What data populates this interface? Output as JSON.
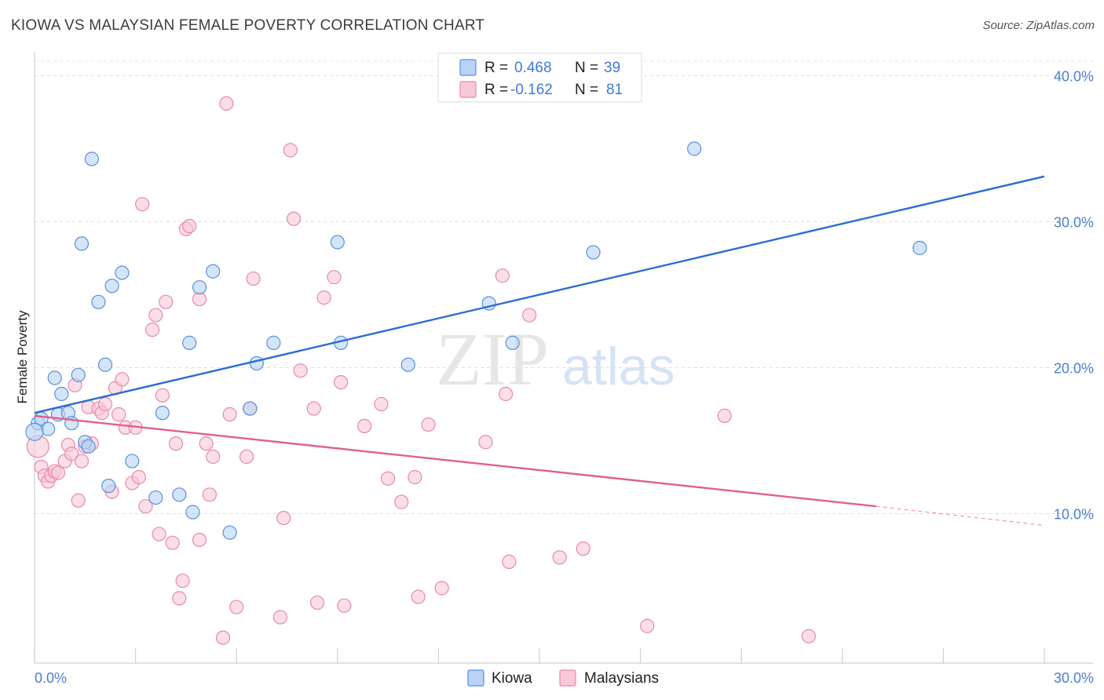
{
  "title": "KIOWA VS MALAYSIAN FEMALE POVERTY CORRELATION CHART",
  "source": "Source: ZipAtlas.com",
  "watermark": {
    "zip": "ZIP",
    "atlas": "atlas"
  },
  "colors": {
    "kiowa_fill": "#b8d3f5",
    "kiowa_stroke": "#5a8fdc",
    "kiowa_line": "#2b6cd0",
    "malay_fill": "#f9c8d8",
    "malay_stroke": "#e889aa",
    "malay_line": "#e0608e",
    "tick_text": "#4a7fd0"
  },
  "legend": {
    "row1": {
      "r_label": "R =",
      "r_value": "0.468",
      "n_label": "N =",
      "n_value": "39"
    },
    "row2": {
      "r_label": "R =",
      "r_value": "-0.162",
      "n_label": "N =",
      "n_value": "81"
    }
  },
  "bottom_legend": {
    "kiowa": "Kiowa",
    "malaysians": "Malaysians"
  },
  "chart_data": {
    "type": "scatter",
    "title": "KIOWA VS MALAYSIAN FEMALE POVERTY CORRELATION CHART",
    "xlabel": "",
    "ylabel": "Female Poverty",
    "xlim": [
      0,
      30
    ],
    "ylim": [
      0,
      40
    ],
    "x_tick_labels": [
      "0.0%",
      "30.0%"
    ],
    "y_tick_labels": [
      "10.0%",
      "20.0%",
      "30.0%",
      "40.0%"
    ],
    "y_ticks": [
      10,
      20,
      30,
      40
    ],
    "x_minor_ticks": [
      0,
      3,
      6,
      9,
      12,
      15,
      18,
      21,
      24,
      27,
      30
    ],
    "grid": true,
    "legend_position": "top-center",
    "series": [
      {
        "name": "Kiowa",
        "r": 0.468,
        "n": 39,
        "trend": {
          "x": [
            0.0,
            30.0
          ],
          "y": [
            16.9,
            33.1
          ],
          "dashed_from": null
        },
        "points": [
          [
            0.1,
            16.2
          ],
          [
            0.2,
            16.5
          ],
          [
            0.4,
            15.8
          ],
          [
            0.6,
            19.3
          ],
          [
            0.7,
            16.8
          ],
          [
            0.8,
            18.2
          ],
          [
            1.0,
            16.9
          ],
          [
            1.1,
            16.2
          ],
          [
            1.3,
            19.5
          ],
          [
            1.4,
            28.5
          ],
          [
            1.5,
            14.9
          ],
          [
            1.6,
            14.6
          ],
          [
            1.7,
            34.3
          ],
          [
            1.9,
            24.5
          ],
          [
            2.1,
            20.2
          ],
          [
            2.2,
            11.9
          ],
          [
            2.3,
            25.6
          ],
          [
            2.6,
            26.5
          ],
          [
            2.9,
            13.6
          ],
          [
            3.6,
            11.1
          ],
          [
            3.8,
            16.9
          ],
          [
            4.3,
            11.3
          ],
          [
            4.6,
            21.7
          ],
          [
            4.7,
            10.1
          ],
          [
            4.9,
            25.5
          ],
          [
            5.3,
            26.6
          ],
          [
            5.8,
            8.7
          ],
          [
            6.4,
            17.2
          ],
          [
            6.6,
            20.3
          ],
          [
            7.1,
            21.7
          ],
          [
            9.0,
            28.6
          ],
          [
            9.1,
            21.7
          ],
          [
            11.1,
            20.2
          ],
          [
            13.5,
            24.4
          ],
          [
            14.2,
            21.7
          ],
          [
            16.6,
            27.9
          ],
          [
            19.6,
            35.0
          ],
          [
            26.3,
            28.2
          ],
          [
            0.0,
            15.6
          ]
        ]
      },
      {
        "name": "Malaysians",
        "r": -0.162,
        "n": 81,
        "trend": {
          "x": [
            0.0,
            25.0,
            30.0
          ],
          "y": [
            16.7,
            10.5,
            9.2
          ],
          "dashed_from": 25.0
        },
        "points": [
          [
            0.1,
            14.6
          ],
          [
            0.2,
            13.2
          ],
          [
            0.3,
            12.6
          ],
          [
            0.4,
            12.2
          ],
          [
            0.5,
            12.6
          ],
          [
            0.6,
            12.9
          ],
          [
            0.7,
            12.8
          ],
          [
            0.9,
            13.6
          ],
          [
            1.0,
            14.7
          ],
          [
            1.1,
            14.1
          ],
          [
            1.2,
            18.8
          ],
          [
            1.3,
            10.9
          ],
          [
            1.4,
            13.6
          ],
          [
            1.5,
            14.6
          ],
          [
            1.6,
            17.3
          ],
          [
            1.7,
            14.8
          ],
          [
            1.9,
            17.2
          ],
          [
            2.0,
            16.9
          ],
          [
            2.1,
            17.5
          ],
          [
            2.3,
            11.5
          ],
          [
            2.4,
            18.6
          ],
          [
            2.5,
            16.8
          ],
          [
            2.6,
            19.2
          ],
          [
            2.7,
            15.9
          ],
          [
            2.9,
            12.1
          ],
          [
            3.0,
            15.9
          ],
          [
            3.1,
            12.5
          ],
          [
            3.2,
            31.2
          ],
          [
            3.3,
            10.5
          ],
          [
            3.5,
            22.6
          ],
          [
            3.6,
            23.6
          ],
          [
            3.7,
            8.6
          ],
          [
            3.8,
            18.1
          ],
          [
            3.9,
            24.5
          ],
          [
            4.1,
            8.0
          ],
          [
            4.2,
            14.8
          ],
          [
            4.3,
            4.2
          ],
          [
            4.4,
            5.4
          ],
          [
            4.5,
            29.5
          ],
          [
            4.6,
            29.7
          ],
          [
            4.9,
            24.7
          ],
          [
            4.9,
            8.2
          ],
          [
            5.1,
            14.8
          ],
          [
            5.2,
            11.3
          ],
          [
            5.3,
            13.9
          ],
          [
            5.6,
            1.5
          ],
          [
            5.7,
            38.1
          ],
          [
            5.8,
            16.8
          ],
          [
            6.0,
            3.6
          ],
          [
            6.3,
            13.9
          ],
          [
            6.4,
            17.2
          ],
          [
            6.5,
            26.1
          ],
          [
            7.3,
            2.9
          ],
          [
            7.4,
            9.7
          ],
          [
            7.6,
            34.9
          ],
          [
            7.7,
            30.2
          ],
          [
            7.9,
            19.8
          ],
          [
            8.3,
            17.2
          ],
          [
            8.4,
            3.9
          ],
          [
            8.6,
            24.8
          ],
          [
            8.9,
            26.2
          ],
          [
            9.1,
            19.0
          ],
          [
            9.2,
            3.7
          ],
          [
            9.8,
            16.0
          ],
          [
            10.3,
            17.5
          ],
          [
            10.5,
            12.4
          ],
          [
            10.9,
            10.8
          ],
          [
            11.3,
            12.5
          ],
          [
            11.4,
            4.3
          ],
          [
            11.7,
            16.1
          ],
          [
            12.1,
            4.9
          ],
          [
            13.4,
            14.9
          ],
          [
            13.9,
            26.3
          ],
          [
            14.0,
            18.2
          ],
          [
            14.1,
            6.7
          ],
          [
            14.7,
            23.6
          ],
          [
            15.6,
            7.0
          ],
          [
            16.3,
            7.6
          ],
          [
            18.2,
            2.3
          ],
          [
            20.5,
            16.7
          ],
          [
            23.0,
            1.6
          ]
        ]
      }
    ]
  }
}
